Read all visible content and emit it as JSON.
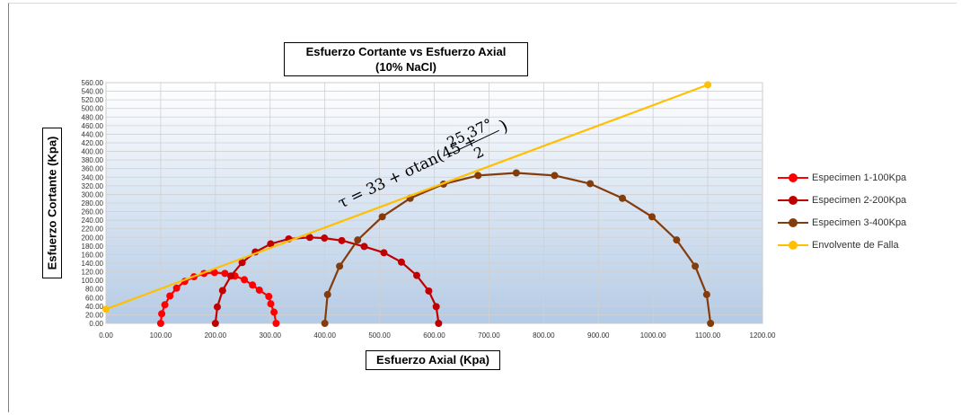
{
  "chart_data": {
    "type": "scatter",
    "title_line1": "Esfuerzo Cortante vs Esfuerzo  Axial",
    "title_line2": "(10% NaCl)",
    "xlabel": "Esfuerzo Axial (Kpa)",
    "ylabel": "Esfuerzo  Cortante (Kpa)",
    "xlim": [
      0,
      1200
    ],
    "ylim": [
      0,
      560
    ],
    "x_step": 100,
    "y_step": 20,
    "grid": true,
    "legend_position": "right",
    "formula": {
      "lhs": "τ = 33 + σtan(45 +",
      "numerator": "25.37°",
      "denominator": "2",
      "close": ")"
    },
    "series": [
      {
        "name": "Especimen 1-100Kpa",
        "color": "#ff0000",
        "points": [
          [
            100,
            0
          ],
          [
            101.9,
            22.3
          ],
          [
            107.6,
            43.3
          ],
          [
            116.8,
            63.7
          ],
          [
            129.1,
            81.9
          ],
          [
            144.0,
            97.6
          ],
          [
            160.9,
            108.5
          ],
          [
            179.3,
            116.1
          ],
          [
            198.3,
            118.2
          ],
          [
            217.4,
            116.2
          ],
          [
            235.9,
            110.2
          ],
          [
            252.9,
            101.5
          ],
          [
            267.8,
            89.2
          ],
          [
            280.3,
            77.4
          ],
          [
            297.6,
            62.6
          ],
          [
            301.2,
            45.5
          ],
          [
            307.2,
            26.0
          ],
          [
            311.0,
            0
          ]
        ]
      },
      {
        "name": "Especimen 2-200Kpa",
        "color": "#c00000",
        "points": [
          [
            200,
            0
          ],
          [
            203.5,
            38.2
          ],
          [
            213.1,
            76.3
          ],
          [
            228.3,
            110.3
          ],
          [
            248.9,
            141.5
          ],
          [
            273.0,
            166.2
          ],
          [
            301.0,
            185.0
          ],
          [
            334.0,
            196.5
          ],
          [
            372.5,
            200.0
          ],
          [
            399.3,
            198.4
          ],
          [
            431.0,
            192.6
          ],
          [
            472.0,
            178.9
          ],
          [
            508.0,
            164.4
          ],
          [
            540.0,
            142.5
          ],
          [
            568.0,
            111.4
          ],
          [
            590.0,
            75.3
          ],
          [
            603.6,
            38.9
          ],
          [
            608.0,
            0
          ]
        ]
      },
      {
        "name": "Especimen 3-400Kpa",
        "color": "#843c0c",
        "points": [
          [
            400,
            0
          ],
          [
            405,
            67
          ],
          [
            427,
            133
          ],
          [
            460,
            194
          ],
          [
            505,
            248
          ],
          [
            556,
            291
          ],
          [
            617,
            324
          ],
          [
            680,
            344
          ],
          [
            750,
            350
          ],
          [
            820,
            344
          ],
          [
            885,
            325
          ],
          [
            944,
            291
          ],
          [
            998,
            248
          ],
          [
            1043,
            194
          ],
          [
            1077,
            133
          ],
          [
            1098,
            67
          ],
          [
            1105,
            0
          ]
        ]
      },
      {
        "name": "Envolvente de Falla",
        "color": "#ffc000",
        "points": [
          [
            0,
            33
          ],
          [
            1100,
            555
          ]
        ]
      }
    ]
  }
}
